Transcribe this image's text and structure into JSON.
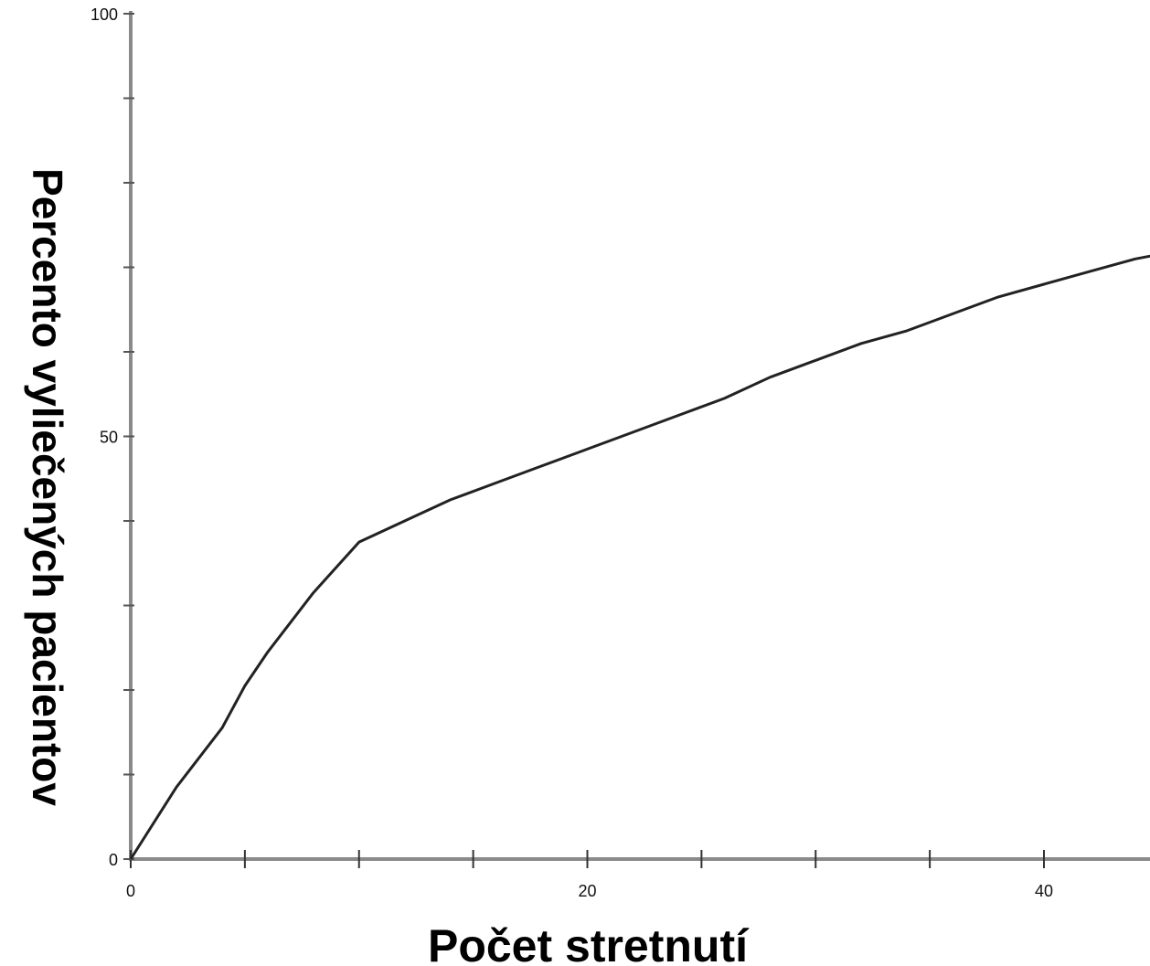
{
  "chart_data": {
    "type": "line",
    "title": "",
    "xlabel": "Počet stretnutí",
    "ylabel": "Percento vyliečených pacientov",
    "xlim": [
      0,
      45
    ],
    "ylim": [
      0,
      100
    ],
    "x_tick_values": [
      0,
      5,
      10,
      15,
      20,
      25,
      30,
      35,
      40
    ],
    "x_tick_labels": [
      {
        "value": 0,
        "label": "0"
      },
      {
        "value": 20,
        "label": "20"
      },
      {
        "value": 40,
        "label": "40"
      }
    ],
    "y_tick_values": [
      0,
      10,
      20,
      30,
      40,
      50,
      60,
      70,
      80,
      90,
      100
    ],
    "y_tick_labels": [
      {
        "value": 0,
        "label": "0"
      },
      {
        "value": 50,
        "label": "50"
      },
      {
        "value": 100,
        "label": "100"
      }
    ],
    "grid": false,
    "series": [
      {
        "color": "#222222",
        "x": [
          0,
          2,
          4,
          5,
          6,
          8,
          10,
          12,
          14,
          16,
          18,
          20,
          22,
          24,
          26,
          28,
          30,
          32,
          34,
          36,
          38,
          40,
          42,
          44,
          45
        ],
        "y": [
          0,
          8.5,
          15.5,
          20.5,
          24.5,
          31.5,
          37.5,
          40,
          42.5,
          44.5,
          46.5,
          48.5,
          50.5,
          52.5,
          54.5,
          57,
          59,
          61,
          62.5,
          64.5,
          66.5,
          68,
          69.5,
          71,
          71.5
        ]
      }
    ]
  }
}
